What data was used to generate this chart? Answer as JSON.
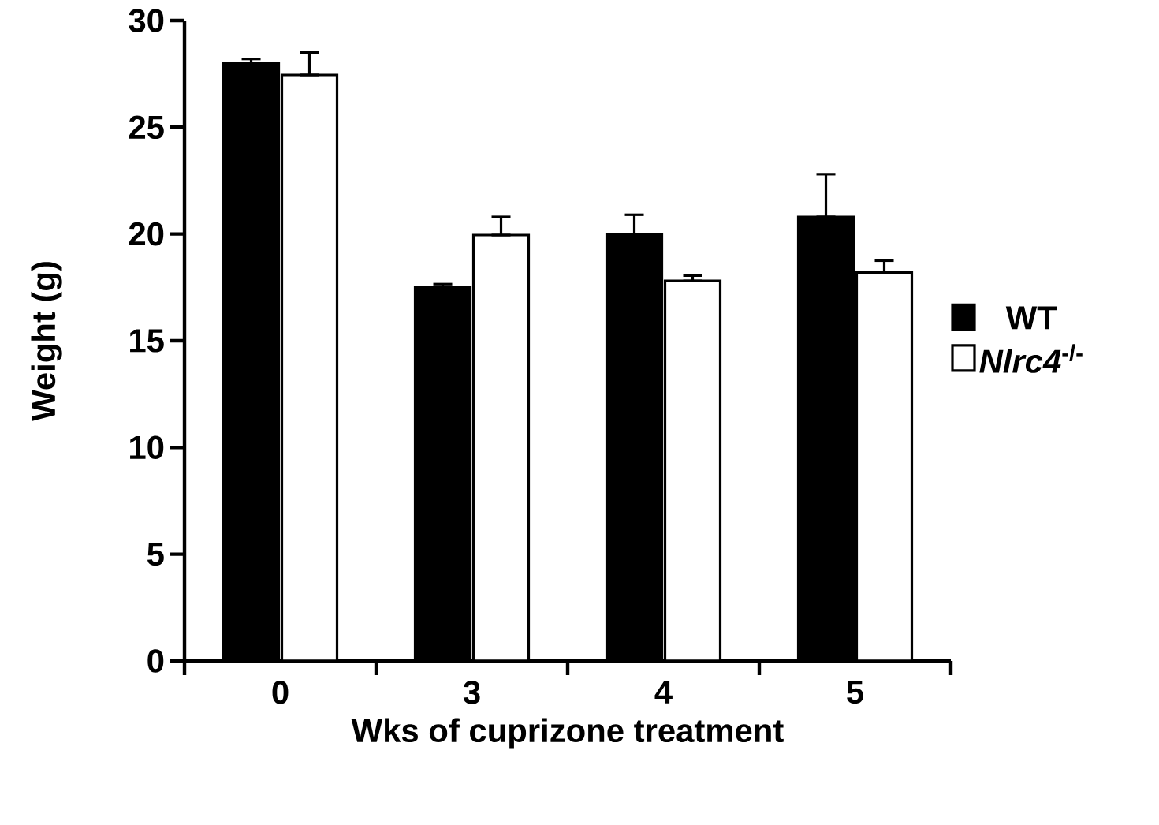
{
  "chart_data": {
    "type": "bar",
    "xlabel": "Wks of cuprizone treatment",
    "ylabel": "Weight (g)",
    "categories": [
      "0",
      "3",
      "4",
      "5"
    ],
    "series": [
      {
        "name": "WT",
        "color": "#000000",
        "values": [
          28.0,
          17.5,
          20.0,
          20.8
        ],
        "errors": [
          [
            28.0,
            28.2
          ],
          [
            17.5,
            17.65
          ],
          [
            20.0,
            20.9
          ],
          [
            20.8,
            22.8
          ]
        ]
      },
      {
        "name": "*Nlrc4*$^{-/-}$",
        "color": "#ffffff",
        "values": [
          27.45,
          19.95,
          17.8,
          18.2
        ],
        "errors": [
          [
            27.45,
            28.5
          ],
          [
            19.95,
            20.8
          ],
          [
            17.8,
            18.05
          ],
          [
            18.2,
            18.75
          ]
        ]
      }
    ],
    "ylim": [
      0,
      30
    ],
    "yticks": [
      0,
      5,
      10,
      15,
      20,
      25,
      30
    ],
    "grid": false,
    "legend": "right"
  }
}
